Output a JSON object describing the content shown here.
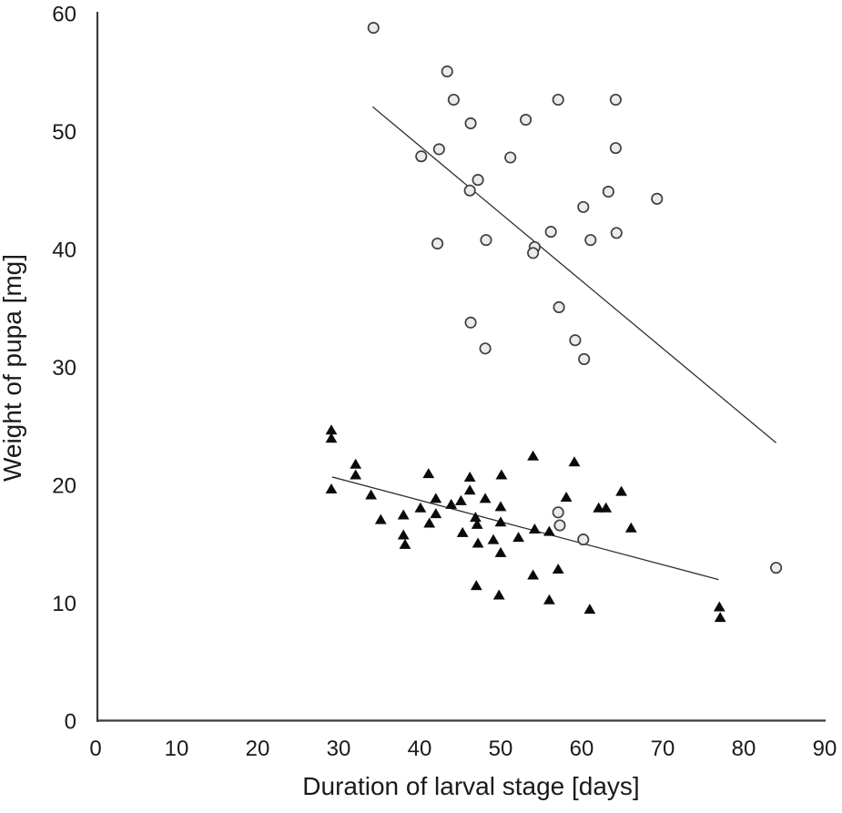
{
  "figure": {
    "background": "#ffffff"
  },
  "chart_data": {
    "type": "scatter",
    "title": "",
    "xlabel": "Duration of larval stage [days]",
    "ylabel": "Weight of pupa [mg]",
    "xlim": [
      0,
      90
    ],
    "ylim": [
      0,
      60
    ],
    "x_ticks": [
      0,
      10,
      20,
      30,
      40,
      50,
      60,
      70,
      80,
      90
    ],
    "y_ticks": [
      0,
      10,
      20,
      30,
      40,
      50,
      60
    ],
    "grid": false,
    "legend_position": "none",
    "axis_color": "#3a3a3a",
    "tick_label_color": "#1a1a1a",
    "trendline_color": "#2f2f2f",
    "series": [
      {
        "name": "open-circles",
        "marker": "circle",
        "marker_fill": "#ebebeb",
        "marker_stroke": "#3f3f3f",
        "points": [
          [
            34.3,
            58.8
          ],
          [
            43.4,
            55.1
          ],
          [
            44.2,
            52.7
          ],
          [
            57.1,
            52.7
          ],
          [
            64.2,
            52.7
          ],
          [
            53.1,
            51.0
          ],
          [
            46.3,
            50.7
          ],
          [
            64.2,
            48.6
          ],
          [
            42.4,
            48.5
          ],
          [
            40.2,
            47.9
          ],
          [
            51.2,
            47.8
          ],
          [
            47.2,
            45.9
          ],
          [
            46.2,
            45.0
          ],
          [
            63.3,
            44.9
          ],
          [
            69.3,
            44.3
          ],
          [
            60.2,
            43.6
          ],
          [
            56.2,
            41.5
          ],
          [
            64.3,
            41.4
          ],
          [
            61.1,
            40.8
          ],
          [
            48.2,
            40.8
          ],
          [
            42.2,
            40.5
          ],
          [
            54.2,
            40.2
          ],
          [
            54.0,
            39.7
          ],
          [
            57.2,
            35.1
          ],
          [
            46.3,
            33.8
          ],
          [
            59.2,
            32.3
          ],
          [
            48.1,
            31.6
          ],
          [
            60.3,
            30.7
          ],
          [
            57.1,
            17.7
          ],
          [
            57.3,
            16.6
          ],
          [
            60.2,
            15.4
          ],
          [
            84.0,
            13.0
          ]
        ]
      },
      {
        "name": "filled-triangles",
        "marker": "triangle",
        "marker_fill": "#0a0a0a",
        "marker_stroke": "#0a0a0a",
        "points": [
          [
            29.1,
            24.7
          ],
          [
            29.1,
            24.0
          ],
          [
            32.1,
            21.8
          ],
          [
            32.1,
            20.9
          ],
          [
            29.1,
            19.7
          ],
          [
            34.0,
            19.2
          ],
          [
            35.2,
            17.1
          ],
          [
            38.0,
            17.5
          ],
          [
            38.0,
            15.8
          ],
          [
            38.2,
            15.0
          ],
          [
            40.1,
            18.1
          ],
          [
            41.1,
            21.0
          ],
          [
            42.0,
            18.9
          ],
          [
            42.0,
            17.6
          ],
          [
            41.2,
            16.8
          ],
          [
            43.9,
            18.4
          ],
          [
            45.1,
            18.7
          ],
          [
            45.3,
            16.0
          ],
          [
            46.2,
            20.7
          ],
          [
            46.2,
            19.6
          ],
          [
            46.9,
            17.3
          ],
          [
            47.1,
            16.7
          ],
          [
            48.1,
            18.9
          ],
          [
            50.1,
            20.9
          ],
          [
            50.0,
            18.2
          ],
          [
            50.0,
            16.9
          ],
          [
            49.1,
            15.4
          ],
          [
            47.2,
            15.1
          ],
          [
            50.0,
            14.3
          ],
          [
            52.2,
            15.6
          ],
          [
            54.0,
            22.5
          ],
          [
            54.2,
            16.3
          ],
          [
            56.0,
            16.1
          ],
          [
            58.1,
            19.0
          ],
          [
            59.1,
            22.0
          ],
          [
            62.1,
            18.1
          ],
          [
            63.0,
            18.1
          ],
          [
            64.9,
            19.5
          ],
          [
            66.1,
            16.4
          ],
          [
            54.0,
            12.4
          ],
          [
            57.1,
            12.9
          ],
          [
            47.0,
            11.5
          ],
          [
            49.8,
            10.7
          ],
          [
            56.0,
            10.3
          ],
          [
            61.0,
            9.5
          ],
          [
            77.0,
            9.7
          ],
          [
            77.1,
            8.8
          ]
        ]
      }
    ],
    "trendlines": [
      {
        "series": "open-circles",
        "x1": 34.2,
        "y1": 52.1,
        "x2": 84.0,
        "y2": 23.6
      },
      {
        "series": "filled-triangles",
        "x1": 29.2,
        "y1": 20.7,
        "x2": 76.9,
        "y2": 12.0
      }
    ]
  }
}
